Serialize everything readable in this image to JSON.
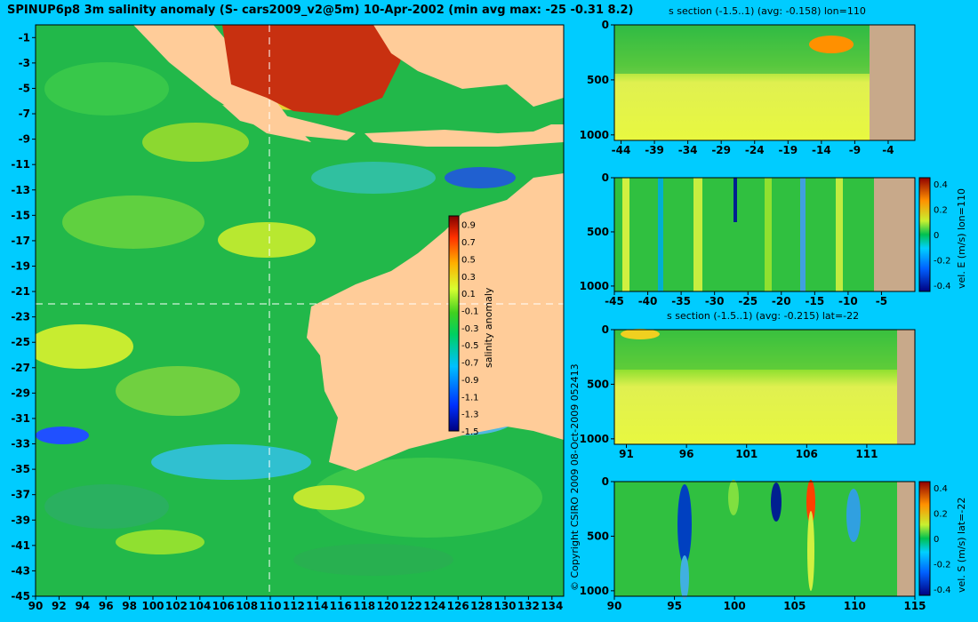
{
  "title": "SPINUP6p8 3m salinity anomaly (S- cars2009_v2@5m) 10-Apr-2002 (min avg max: -25 -0.31 8.2)",
  "copyright": "© Copyright CSIRO 2009    08-Oct-2009 052413",
  "colors": {
    "background": "#00ccff",
    "land": "#ffcc99",
    "section_land": "#c8a98a",
    "crosshair": "#ffffff"
  },
  "chart_data": [
    {
      "id": "map",
      "type": "heatmap",
      "variable": "salinity anomaly",
      "x_ticks": [
        "90",
        "92",
        "94",
        "96",
        "98",
        "100",
        "102",
        "104",
        "106",
        "108",
        "110",
        "112",
        "114",
        "116",
        "118",
        "120",
        "122",
        "124",
        "126",
        "128",
        "130",
        "132",
        "134"
      ],
      "y_ticks": [
        "-1",
        "-3",
        "-5",
        "-7",
        "-9",
        "-11",
        "-13",
        "-15",
        "-17",
        "-19",
        "-21",
        "-23",
        "-25",
        "-27",
        "-29",
        "-31",
        "-33",
        "-35",
        "-37",
        "-39",
        "-41",
        "-43",
        "-45"
      ],
      "xlim": [
        90,
        135
      ],
      "ylim": [
        -45,
        0
      ],
      "crosshair": {
        "lon": 110,
        "lat": -22
      },
      "colorbar": {
        "label": "salinity anomaly",
        "ticks": [
          "0.9",
          "0.7",
          "0.5",
          "0.3",
          "0.1",
          "-0.1",
          "-0.3",
          "-0.5",
          "-0.7",
          "-0.9",
          "-1.1",
          "-1.3",
          "-1.5"
        ],
        "range": [
          -1.5,
          1.0
        ]
      }
    },
    {
      "id": "s-section-lon",
      "type": "heatmap",
      "title": "s section (-1.5..1) (avg: -0.158) lon=110",
      "x_ticks": [
        "-44",
        "-39",
        "-34",
        "-29",
        "-24",
        "-19",
        "-14",
        "-9",
        "-4"
      ],
      "y_ticks": [
        "0",
        "500",
        "1000"
      ],
      "xlim": [
        -45,
        0
      ],
      "ylim": [
        1050,
        0
      ]
    },
    {
      "id": "vel-e-section",
      "type": "heatmap",
      "x_ticks": [
        "-45",
        "-40",
        "-35",
        "-30",
        "-25",
        "-20",
        "-15",
        "-10",
        "-5"
      ],
      "y_ticks": [
        "0",
        "500",
        "1000"
      ],
      "xlim": [
        -45,
        0
      ],
      "ylim": [
        1050,
        0
      ],
      "colorbar": {
        "label": "vel. E (m/s) lon=110",
        "ticks": [
          "0.4",
          "0.2",
          "0",
          "-0.2",
          "-0.4"
        ],
        "range": [
          -0.45,
          0.45
        ]
      }
    },
    {
      "id": "s-section-lat",
      "type": "heatmap",
      "title": "s section (-1.5..1) (avg: -0.215) lat=-22",
      "x_ticks": [
        "91",
        "96",
        "101",
        "106",
        "111"
      ],
      "y_ticks": [
        "0",
        "500",
        "1000"
      ],
      "xlim": [
        90,
        115
      ],
      "ylim": [
        1050,
        0
      ]
    },
    {
      "id": "vel-s-section",
      "type": "heatmap",
      "x_ticks": [
        "90",
        "95",
        "100",
        "105",
        "110",
        "115"
      ],
      "y_ticks": [
        "0",
        "500",
        "1000"
      ],
      "xlim": [
        90,
        115
      ],
      "ylim": [
        1050,
        0
      ],
      "colorbar": {
        "label": "vel. S (m/s) lat=-22",
        "ticks": [
          "0.4",
          "0.2",
          "0",
          "-0.2",
          "-0.4"
        ],
        "range": [
          -0.45,
          0.45
        ]
      }
    }
  ]
}
